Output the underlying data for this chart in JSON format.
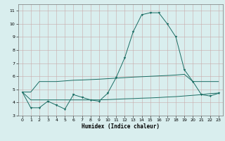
{
  "xlabel": "Humidex (Indice chaleur)",
  "x": [
    0,
    1,
    2,
    3,
    4,
    5,
    6,
    7,
    8,
    9,
    10,
    11,
    12,
    13,
    14,
    15,
    16,
    17,
    18,
    19,
    20,
    21,
    22,
    23
  ],
  "line_main": [
    4.8,
    3.6,
    3.6,
    4.1,
    3.8,
    3.5,
    4.6,
    4.4,
    4.2,
    4.1,
    4.7,
    5.9,
    7.4,
    9.4,
    10.7,
    10.85,
    10.85,
    10.0,
    9.0,
    6.5,
    5.6,
    4.6,
    4.5,
    4.7
  ],
  "line_upper": [
    4.8,
    4.8,
    5.6,
    5.6,
    5.6,
    5.65,
    5.7,
    5.72,
    5.75,
    5.78,
    5.82,
    5.86,
    5.9,
    5.94,
    5.97,
    6.0,
    6.03,
    6.06,
    6.1,
    6.15,
    5.6,
    5.6,
    5.6,
    5.6
  ],
  "line_lower": [
    4.8,
    4.2,
    4.2,
    4.2,
    4.2,
    4.2,
    4.2,
    4.2,
    4.2,
    4.2,
    4.22,
    4.25,
    4.28,
    4.3,
    4.33,
    4.35,
    4.38,
    4.42,
    4.45,
    4.5,
    4.55,
    4.6,
    4.68,
    4.72
  ],
  "color": "#1a6e64",
  "bg_color": "#d9eeee",
  "grid_color": "#c8aaaa",
  "ylim": [
    3,
    11.5
  ],
  "xlim": [
    -0.5,
    23.5
  ],
  "yticks": [
    3,
    4,
    5,
    6,
    7,
    8,
    9,
    10,
    11
  ],
  "xticks": [
    0,
    1,
    2,
    3,
    4,
    5,
    6,
    7,
    8,
    9,
    10,
    11,
    12,
    13,
    14,
    15,
    16,
    17,
    18,
    19,
    20,
    21,
    22,
    23
  ]
}
